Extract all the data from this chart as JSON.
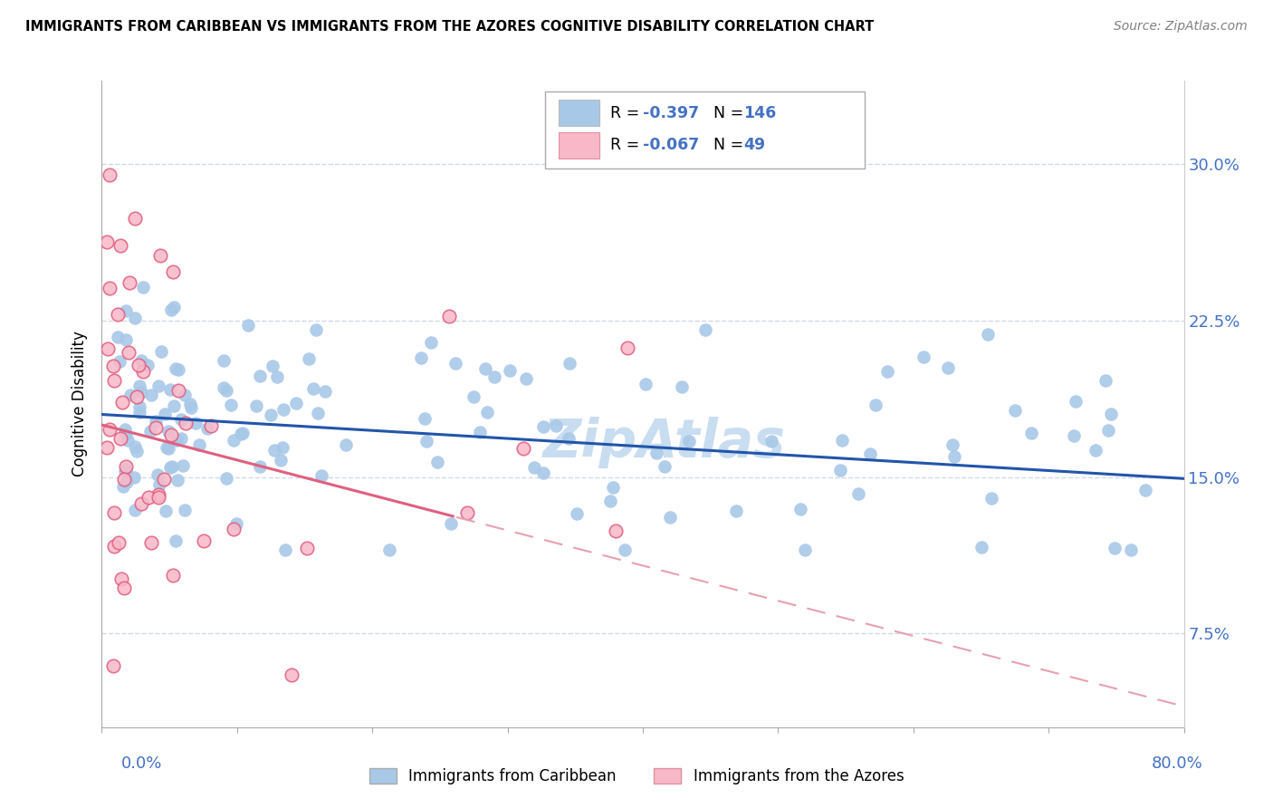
{
  "title": "IMMIGRANTS FROM CARIBBEAN VS IMMIGRANTS FROM THE AZORES COGNITIVE DISABILITY CORRELATION CHART",
  "source": "Source: ZipAtlas.com",
  "ylabel": "Cognitive Disability",
  "legend_blue": {
    "R": "-0.397",
    "N": "146",
    "label": "Immigrants from Caribbean"
  },
  "legend_pink": {
    "R": "-0.067",
    "N": "49",
    "label": "Immigrants from the Azores"
  },
  "ytick_values": [
    0.075,
    0.15,
    0.225,
    0.3
  ],
  "ytick_labels": [
    "7.5%",
    "15.0%",
    "22.5%",
    "30.0%"
  ],
  "xlim": [
    0.0,
    0.8
  ],
  "ylim": [
    0.03,
    0.34
  ],
  "blue_scatter_color": "#a8c8e8",
  "blue_line_color": "#2255aa",
  "pink_scatter_color": "#f8b8c8",
  "pink_line_color": "#e06080",
  "pink_line_dash_color": "#e8a0b0",
  "grid_color": "#d0d8e8",
  "text_color": "#4472c4",
  "watermark_color": "#c8ddf0",
  "seed_blue": 123,
  "seed_pink": 456,
  "N_blue": 146,
  "N_pink": 49
}
